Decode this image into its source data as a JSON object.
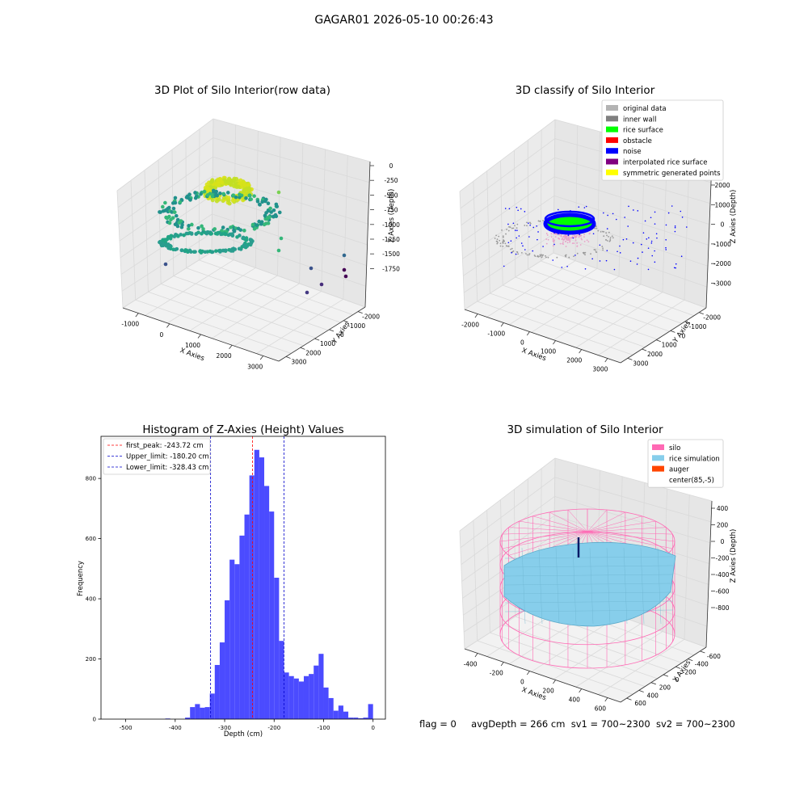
{
  "suptitle": "GAGAR01 2026-05-10 00:26:43",
  "footer": {
    "flag": "flag = 0",
    "avg": "avgDepth = 266 cm",
    "sv1": "sv1 = 700~2300",
    "sv2": "sv2 = 700~2300"
  },
  "colors": {
    "hist_bar": "#4b4bff",
    "first_peak": "#ff0000",
    "limit": "#0000cc",
    "silo": "#ff69b4",
    "rice": "#87ceeb",
    "auger": "#ff4500",
    "rice_surface": "#00ff00",
    "noise": "#0000ff",
    "original": "#b3b3b3",
    "inner_wall": "#808080",
    "obstacle": "#ff0000",
    "interpolated": "#800080",
    "symmetric": "#ffff00"
  },
  "chart_data": [
    {
      "type": "scatter",
      "projection": "3d",
      "title": "3D Plot of Silo Interior(row data)",
      "xlabel": "X Axies",
      "ylabel": "Y Axies",
      "zlabel": "Z Axies (Depth)",
      "x_ticks": [
        "-1000",
        "0",
        "1000",
        "2000",
        "3000"
      ],
      "y_ticks": [
        "-2000",
        "-1000",
        "0",
        "1000",
        "2000",
        "3000"
      ],
      "z_ticks": [
        "0",
        "-250",
        "-500",
        "-750",
        "-1000",
        "-1250",
        "-1500",
        "-1750"
      ],
      "colormap": "viridis"
    },
    {
      "type": "scatter",
      "projection": "3d",
      "title": "3D classify of Silo Interior",
      "xlabel": "X Axies",
      "ylabel": "Y Axies",
      "zlabel": "Z Axies (Depth)",
      "x_ticks": [
        "-2000",
        "-1000",
        "0",
        "1000",
        "2000",
        "3000"
      ],
      "y_ticks": [
        "-2000",
        "-1000",
        "0",
        "1000",
        "2000",
        "3000"
      ],
      "z_ticks": [
        "2000",
        "1000",
        "0",
        "-1000",
        "-2000",
        "-3000"
      ],
      "legend": [
        "original data",
        "inner wall",
        "rice surface",
        "obstacle",
        "noise",
        "interpolated rice surface",
        "symmetric generated points"
      ],
      "legend_location": "top-right"
    },
    {
      "type": "bar",
      "title": "Histogram of Z-Axies (Height) Values",
      "xlabel": "Depth (cm)",
      "ylabel": "Frequency",
      "xlim": [
        -550,
        25
      ],
      "ylim": [
        0,
        940
      ],
      "x_ticks": [
        -500,
        -400,
        -300,
        -200,
        -100,
        0
      ],
      "y_ticks": [
        0,
        200,
        400,
        600,
        800
      ],
      "bin_width": 10,
      "bins": [
        {
          "x0": -420,
          "v": 2
        },
        {
          "x0": -380,
          "v": 5
        },
        {
          "x0": -370,
          "v": 40
        },
        {
          "x0": -360,
          "v": 50
        },
        {
          "x0": -350,
          "v": 38
        },
        {
          "x0": -340,
          "v": 40
        },
        {
          "x0": -330,
          "v": 85
        },
        {
          "x0": -320,
          "v": 180
        },
        {
          "x0": -310,
          "v": 255
        },
        {
          "x0": -300,
          "v": 395
        },
        {
          "x0": -290,
          "v": 530
        },
        {
          "x0": -280,
          "v": 515
        },
        {
          "x0": -270,
          "v": 610
        },
        {
          "x0": -260,
          "v": 680
        },
        {
          "x0": -250,
          "v": 810
        },
        {
          "x0": -240,
          "v": 895
        },
        {
          "x0": -230,
          "v": 870
        },
        {
          "x0": -220,
          "v": 775
        },
        {
          "x0": -210,
          "v": 690
        },
        {
          "x0": -200,
          "v": 470
        },
        {
          "x0": -190,
          "v": 260
        },
        {
          "x0": -180,
          "v": 155
        },
        {
          "x0": -170,
          "v": 143
        },
        {
          "x0": -160,
          "v": 135
        },
        {
          "x0": -150,
          "v": 125
        },
        {
          "x0": -140,
          "v": 143
        },
        {
          "x0": -130,
          "v": 150
        },
        {
          "x0": -120,
          "v": 178
        },
        {
          "x0": -110,
          "v": 217
        },
        {
          "x0": -100,
          "v": 105
        },
        {
          "x0": -90,
          "v": 70
        },
        {
          "x0": -80,
          "v": 28
        },
        {
          "x0": -70,
          "v": 45
        },
        {
          "x0": -60,
          "v": 25
        },
        {
          "x0": -50,
          "v": 5
        },
        {
          "x0": -40,
          "v": 5
        },
        {
          "x0": -30,
          "v": 3
        },
        {
          "x0": -20,
          "v": 5
        },
        {
          "x0": -10,
          "v": 50
        }
      ],
      "lines": [
        {
          "label": "first_peak: -243.72 cm",
          "x": -243.72,
          "color": "#ff0000"
        },
        {
          "label": "Upper_limit: -180.20 cm",
          "x": -180.2,
          "color": "#0000cc"
        },
        {
          "label": "Lower_limit: -328.43 cm",
          "x": -328.43,
          "color": "#0000cc"
        }
      ],
      "legend_location": "top-left"
    },
    {
      "type": "surface",
      "projection": "3d",
      "title": "3D simulation of Silo Interior",
      "xlabel": "X Axies",
      "ylabel": "Y Axies",
      "zlabel": "Z Axies (Depth)",
      "x_ticks": [
        "-400",
        "-200",
        "0",
        "200",
        "400",
        "600"
      ],
      "y_ticks": [
        "-600",
        "-400",
        "-200",
        "0",
        "200",
        "400",
        "600"
      ],
      "z_ticks": [
        "400",
        "200",
        "0",
        "-200",
        "-400",
        "-600",
        "-800"
      ],
      "legend": [
        "silo",
        "rice simulation",
        "auger",
        "center(85,-5)"
      ],
      "legend_location": "top-right"
    }
  ]
}
